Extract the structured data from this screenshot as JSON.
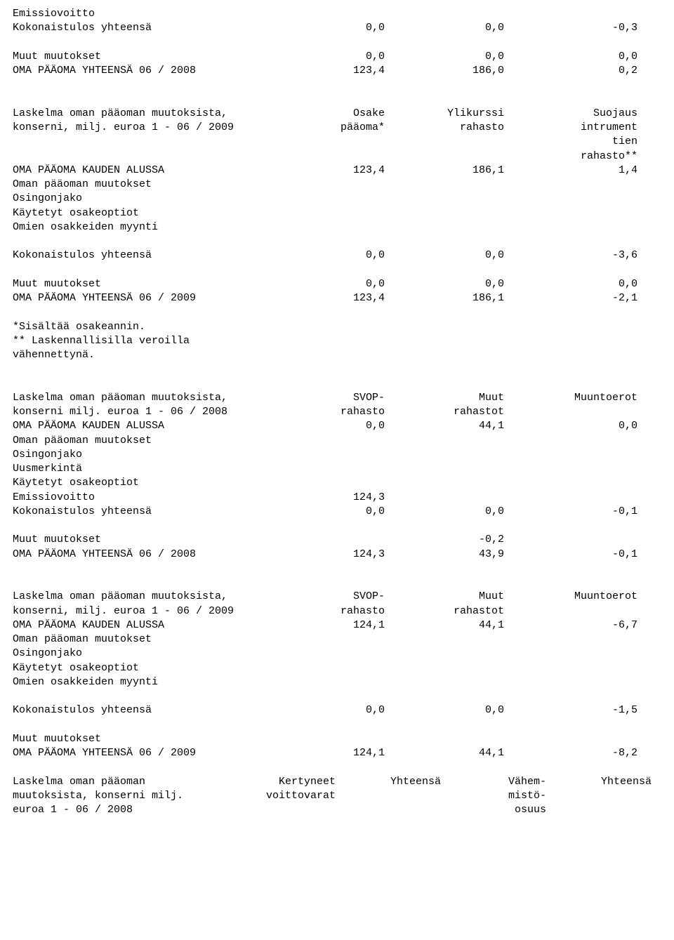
{
  "s1": {
    "r1": {
      "label": "Emissiovoitto"
    },
    "r2": {
      "label": "Kokonaistulos yhteensä",
      "a": "0,0",
      "b": "0,0",
      "c": "-0,3"
    },
    "r3": {
      "label": "Muut muutokset",
      "a": "0,0",
      "b": "0,0",
      "c": "0,0"
    },
    "r4": {
      "label": "OMA PÄÄOMA YHTEENSÄ 06 / 2008",
      "a": "123,4",
      "b": "186,0",
      "c": "0,2"
    }
  },
  "s2": {
    "h1": {
      "label": "Laskelma oman pääoman muutoksista,",
      "a": "Osake",
      "b": "Ylikurssi",
      "c": "Suojaus"
    },
    "h2": {
      "label": "konserni, milj. euroa 1 - 06 / 2009",
      "a": "pääoma*",
      "b": "rahasto",
      "c": "intrument"
    },
    "h3": {
      "c": "tien"
    },
    "h4": {
      "c": "rahasto**"
    },
    "r1": {
      "label": "OMA PÄÄOMA KAUDEN ALUSSA",
      "a": "123,4",
      "b": "186,1",
      "c": "1,4"
    },
    "r2": {
      "label": "Oman pääoman muutokset"
    },
    "r3": {
      "label": "Osingonjako"
    },
    "r4": {
      "label": "Käytetyt osakeoptiot"
    },
    "r5": {
      "label": "Omien osakkeiden myynti"
    },
    "r6": {
      "label": "Kokonaistulos yhteensä",
      "a": "0,0",
      "b": "0,0",
      "c": "-3,6"
    },
    "r7": {
      "label": "Muut muutokset",
      "a": "0,0",
      "b": "0,0",
      "c": "0,0"
    },
    "r8": {
      "label": "OMA PÄÄOMA YHTEENSÄ 06 / 2009",
      "a": "123,4",
      "b": "186,1",
      "c": "-2,1"
    },
    "n1": {
      "label": "*Sisältää osakeannin."
    },
    "n2": {
      "label": "** Laskennallisilla veroilla"
    },
    "n3": {
      "label": "vähennettynä."
    }
  },
  "s3": {
    "h1": {
      "label": "Laskelma oman pääoman muutoksista,",
      "a": "SVOP-",
      "b": "Muut",
      "c": "Muuntoerot"
    },
    "h2": {
      "label": "konserni milj. euroa 1 - 06 / 2008",
      "a": "rahasto",
      "b": "rahastot"
    },
    "r1": {
      "label": "OMA PÄÄOMA KAUDEN ALUSSA",
      "a": "0,0",
      "b": "44,1",
      "c": "0,0"
    },
    "r2": {
      "label": "Oman pääoman muutokset"
    },
    "r3": {
      "label": "Osingonjako"
    },
    "r4": {
      "label": "Uusmerkintä"
    },
    "r5": {
      "label": "Käytetyt osakeoptiot"
    },
    "r6": {
      "label": "Emissiovoitto",
      "a": "124,3"
    },
    "r7": {
      "label": "Kokonaistulos yhteensä",
      "a": "0,0",
      "b": "0,0",
      "c": "-0,1"
    },
    "r8": {
      "label": "Muut muutokset",
      "b": "-0,2"
    },
    "r9": {
      "label": "OMA PÄÄOMA YHTEENSÄ 06 / 2008",
      "a": "124,3",
      "b": "43,9",
      "c": "-0,1"
    }
  },
  "s4": {
    "h1": {
      "label": "Laskelma oman pääoman muutoksista,",
      "a": "SVOP-",
      "b": "Muut",
      "c": "Muuntoerot"
    },
    "h2": {
      "label": "konserni, milj. euroa 1 - 06 / 2009",
      "a": "rahasto",
      "b": "rahastot"
    },
    "r1": {
      "label": "OMA PÄÄOMA KAUDEN ALUSSA",
      "a": "124,1",
      "b": "44,1",
      "c": "-6,7"
    },
    "r2": {
      "label": "Oman pääoman muutokset"
    },
    "r3": {
      "label": "Osingonjako"
    },
    "r4": {
      "label": "Käytetyt osakeoptiot"
    },
    "r5": {
      "label": "Omien osakkeiden myynti"
    },
    "r6": {
      "label": "Kokonaistulos yhteensä",
      "a": "0,0",
      "b": "0,0",
      "c": "-1,5"
    },
    "r7": {
      "label": "Muut muutokset"
    },
    "r8": {
      "label": "OMA PÄÄOMA YHTEENSÄ 06 / 2009",
      "a": "124,1",
      "b": "44,1",
      "c": "-8,2"
    }
  },
  "s5": {
    "h1": {
      "label": "Laskelma oman pääoman",
      "a": "Kertyneet",
      "b": "Yhteensä",
      "c": "Vähem-",
      "d": "Yhteensä"
    },
    "h2": {
      "label": "muutoksista, konserni milj.",
      "a": "voittovarat",
      "c": "mistö-"
    },
    "h3": {
      "label": "euroa 1 - 06 / 2008",
      "c": "osuus"
    }
  }
}
